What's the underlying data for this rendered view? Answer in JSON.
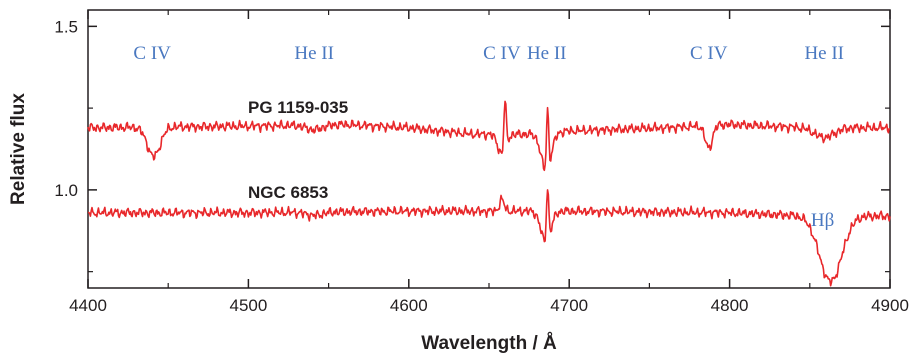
{
  "colors": {
    "spectrum": "#e8282b",
    "line_label": "#4a78c0",
    "axis": "#231f20"
  },
  "chart_data": {
    "type": "line",
    "title": "",
    "xlabel": "Wavelength / Å",
    "ylabel": "Relative flux",
    "xlim": [
      4400,
      4900
    ],
    "ylim": [
      0.7,
      1.55
    ],
    "x_ticks": [
      4400,
      4500,
      4600,
      4700,
      4800,
      4900
    ],
    "x_tick_labels": [
      "4400",
      "4500",
      "4600",
      "4700",
      "4800",
      "4900"
    ],
    "y_ticks": [
      1.0,
      1.5
    ],
    "y_tick_labels": [
      "1.0",
      "1.5"
    ],
    "grid": false,
    "series": [
      {
        "name": "PG 1159-035",
        "continuum": [
          [
            4400,
            1.19
          ],
          [
            4500,
            1.195
          ],
          [
            4560,
            1.2
          ],
          [
            4600,
            1.19
          ],
          [
            4640,
            1.17
          ],
          [
            4680,
            1.17
          ],
          [
            4700,
            1.18
          ],
          [
            4760,
            1.19
          ],
          [
            4800,
            1.2
          ],
          [
            4850,
            1.19
          ],
          [
            4900,
            1.19
          ]
        ],
        "features": [
          {
            "center": 4441,
            "depth": -0.09,
            "width": 4
          },
          {
            "center": 4541,
            "depth": -0.015,
            "width": 5
          },
          {
            "center": 4658,
            "depth": -0.06,
            "width": 2.5
          },
          {
            "center": 4660,
            "depth": 0.15,
            "width": 0.7
          },
          {
            "center": 4685.7,
            "depth": -0.12,
            "width": 3
          },
          {
            "center": 4686.5,
            "depth": 0.19,
            "width": 0.7
          },
          {
            "center": 4787,
            "depth": -0.07,
            "width": 2.2
          },
          {
            "center": 4859,
            "depth": -0.03,
            "width": 6
          }
        ]
      },
      {
        "name": "NGC 6853",
        "continuum": [
          [
            4400,
            0.93
          ],
          [
            4500,
            0.93
          ],
          [
            4600,
            0.935
          ],
          [
            4700,
            0.935
          ],
          [
            4800,
            0.93
          ],
          [
            4850,
            0.92
          ],
          [
            4900,
            0.92
          ]
        ],
        "features": [
          {
            "center": 4541,
            "depth": -0.01,
            "width": 5
          },
          {
            "center": 4658,
            "depth": 0.035,
            "width": 1.5
          },
          {
            "center": 4685.5,
            "depth": -0.1,
            "width": 3
          },
          {
            "center": 4686.5,
            "depth": 0.17,
            "width": 0.7
          },
          {
            "center": 4863,
            "depth": -0.2,
            "width": 7
          }
        ]
      }
    ],
    "annotations": [
      {
        "text": "C IV",
        "x": 4440,
        "y": 1.4
      },
      {
        "text": "He II",
        "x": 4541,
        "y": 1.4
      },
      {
        "text": "C IV",
        "x": 4658,
        "y": 1.4
      },
      {
        "text": "He II",
        "x": 4686,
        "y": 1.4
      },
      {
        "text": "C IV",
        "x": 4787,
        "y": 1.4
      },
      {
        "text": "He II",
        "x": 4859,
        "y": 1.4
      },
      {
        "text": "Hβ",
        "x": 4858,
        "y": 0.89
      }
    ]
  }
}
